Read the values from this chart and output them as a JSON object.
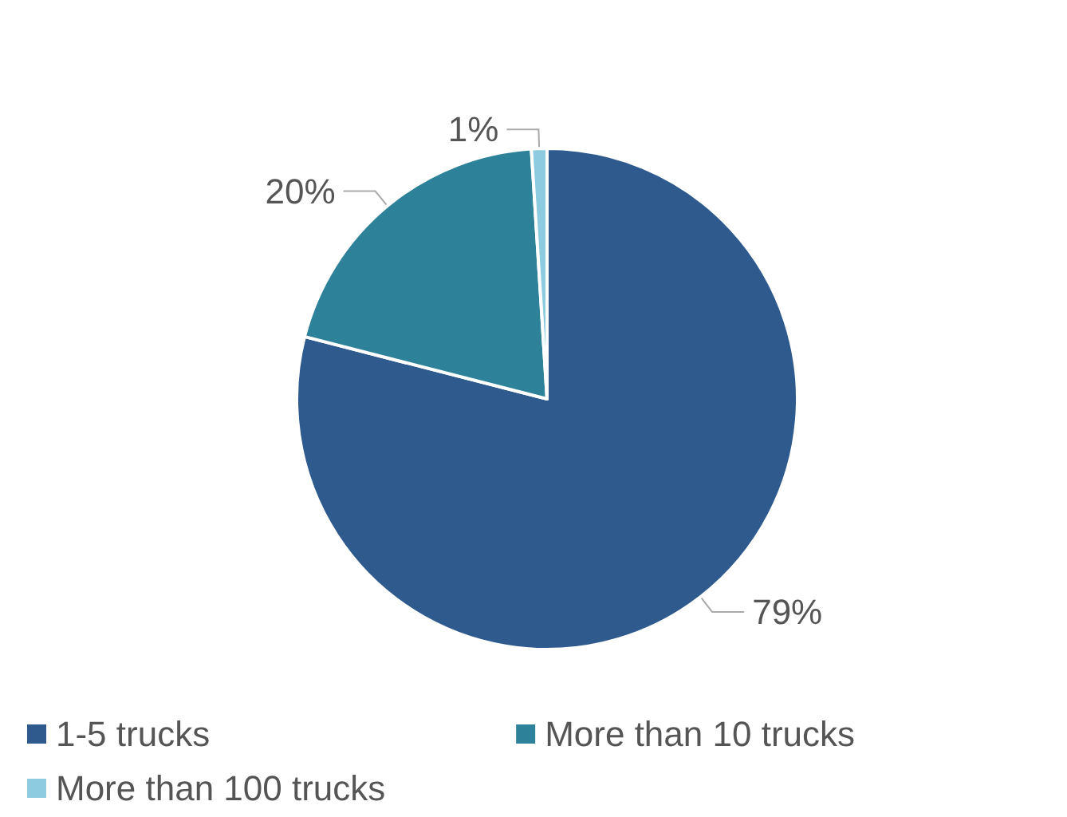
{
  "chart_data": {
    "type": "pie",
    "categories": [
      "1-5 trucks",
      "More than 10 trucks",
      "More than 100 trucks"
    ],
    "values": [
      79,
      20,
      1
    ],
    "colors": [
      "#2f5a8e",
      "#2d8299",
      "#8ccbe0"
    ],
    "value_labels": [
      "79%",
      "20%",
      "1%"
    ],
    "legend": "bottom"
  }
}
